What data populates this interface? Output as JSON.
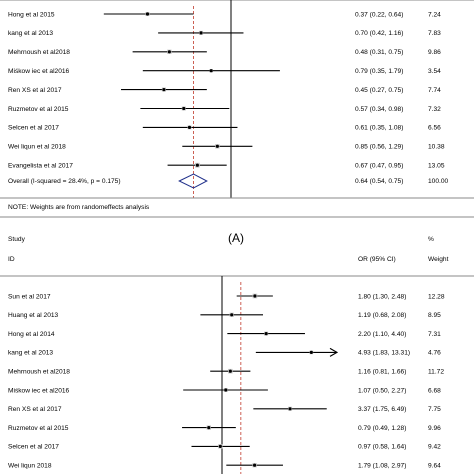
{
  "caption_label": "(A)",
  "chart_data": [
    {
      "type": "forest",
      "x_scale": "log",
      "reference_line": 1,
      "pooled_line": 0.64,
      "rows": [
        {
          "study": "Hong et al 2015",
          "or": 0.37,
          "lo": 0.22,
          "hi": 0.64,
          "ci_text": "0.37 (0.22, 0.64)",
          "weight": "7.24"
        },
        {
          "study": "kang et al 2013",
          "or": 0.7,
          "lo": 0.42,
          "hi": 1.16,
          "ci_text": "0.70 (0.42, 1.16)",
          "weight": "7.83"
        },
        {
          "study": "Mehrnoush et al2018",
          "or": 0.48,
          "lo": 0.31,
          "hi": 0.75,
          "ci_text": "0.48 (0.31, 0.75)",
          "weight": "9.86"
        },
        {
          "study": "Miśkow iec et al2016",
          "or": 0.79,
          "lo": 0.35,
          "hi": 1.79,
          "ci_text": "0.79 (0.35, 1.79)",
          "weight": "3.54"
        },
        {
          "study": "Ren XS et al 2017",
          "or": 0.45,
          "lo": 0.27,
          "hi": 0.75,
          "ci_text": "0.45 (0.27, 0.75)",
          "weight": "7.74"
        },
        {
          "study": "Ruzmetov et al 2015",
          "or": 0.57,
          "lo": 0.34,
          "hi": 0.98,
          "ci_text": "0.57 (0.34, 0.98)",
          "weight": "7.32"
        },
        {
          "study": "Selcen et al 2017",
          "or": 0.61,
          "lo": 0.35,
          "hi": 1.08,
          "ci_text": "0.61 (0.35, 1.08)",
          "weight": "6.56"
        },
        {
          "study": "Wei liqun et al 2018",
          "or": 0.85,
          "lo": 0.56,
          "hi": 1.29,
          "ci_text": "0.85 (0.56, 1.29)",
          "weight": "10.38"
        },
        {
          "study": "Evangelista et al 2017",
          "or": 0.67,
          "lo": 0.47,
          "hi": 0.95,
          "ci_text": "0.67 (0.47, 0.95)",
          "weight": "13.05"
        }
      ],
      "overall": {
        "label": "Overall  (I-squared = 28.4%, p = 0.175)",
        "or": 0.64,
        "lo": 0.54,
        "hi": 0.75,
        "ci_text": "0.64 (0.54, 0.75)",
        "weight": "100.00"
      },
      "note": "NOTE: Weights are from randomeffects analysis"
    },
    {
      "type": "forest",
      "x_scale": "log",
      "reference_line": 1,
      "pooled_line": 1.4,
      "header": {
        "study": "Study",
        "id": "ID",
        "or": "OR (95% CI)",
        "pct": "%",
        "weight": "Weight"
      },
      "rows": [
        {
          "study": "Sun et al 2017",
          "or": 1.8,
          "lo": 1.3,
          "hi": 2.48,
          "ci_text": "1.80 (1.30, 2.48)",
          "weight": "12.28"
        },
        {
          "study": "Huang et al 2013",
          "or": 1.19,
          "lo": 0.68,
          "hi": 2.08,
          "ci_text": "1.19 (0.68, 2.08)",
          "weight": "8.95"
        },
        {
          "study": "Hong et al 2014",
          "or": 2.2,
          "lo": 1.1,
          "hi": 4.4,
          "ci_text": "2.20 (1.10, 4.40)",
          "weight": "7.31"
        },
        {
          "study": "kang et al 2013",
          "or": 4.93,
          "lo": 1.83,
          "hi": 13.31,
          "ci_text": "4.93 (1.83, 13.31)",
          "weight": "4.76",
          "arrow": true
        },
        {
          "study": "Mehrnoush et al2018",
          "or": 1.16,
          "lo": 0.81,
          "hi": 1.66,
          "ci_text": "1.16 (0.81, 1.66)",
          "weight": "11.72"
        },
        {
          "study": "Miśkow iec et al2016",
          "or": 1.07,
          "lo": 0.5,
          "hi": 2.27,
          "ci_text": "1.07 (0.50, 2.27)",
          "weight": "6.68"
        },
        {
          "study": "Ren XS et al 2017",
          "or": 3.37,
          "lo": 1.75,
          "hi": 6.49,
          "ci_text": "3.37 (1.75, 6.49)",
          "weight": "7.75"
        },
        {
          "study": "Ruzmetov et al 2015",
          "or": 0.79,
          "lo": 0.49,
          "hi": 1.28,
          "ci_text": "0.79 (0.49, 1.28)",
          "weight": "9.96"
        },
        {
          "study": "Selcen et al 2017",
          "or": 0.97,
          "lo": 0.58,
          "hi": 1.64,
          "ci_text": "0.97 (0.58, 1.64)",
          "weight": "9.42"
        },
        {
          "study": "Wei liqun 2018",
          "or": 1.79,
          "lo": 1.08,
          "hi": 2.97,
          "ci_text": "1.79 (1.08, 2.97)",
          "weight": "9.64"
        }
      ]
    }
  ],
  "colors": {
    "pooled_line": "#c0392b",
    "diamond": "#1f2f8a",
    "marker": "#000000"
  }
}
